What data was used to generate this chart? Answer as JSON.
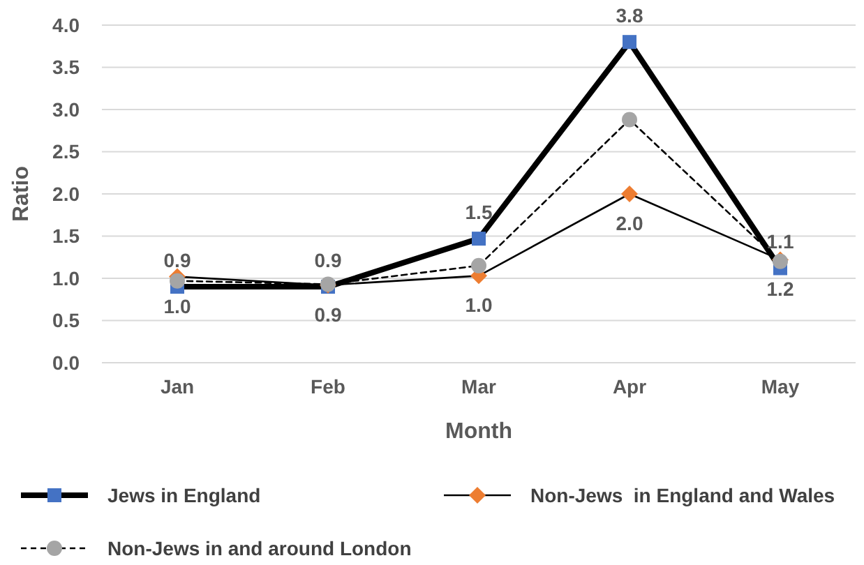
{
  "chart_data": {
    "type": "line",
    "xlabel": "Month",
    "ylabel": "Ratio",
    "categories": [
      "Jan",
      "Feb",
      "Mar",
      "Apr",
      "May"
    ],
    "ylim": [
      0,
      4
    ],
    "yticks": [
      "0.0",
      "0.5",
      "1.0",
      "1.5",
      "2.0",
      "2.5",
      "3.0",
      "3.5",
      "4.0"
    ],
    "grid": "y",
    "legend": "bottom",
    "series": [
      {
        "name": "Jews in England",
        "color": "#4472c4",
        "marker": "square",
        "line_style": "solid",
        "values": [
          0.9,
          0.9,
          1.47,
          3.8,
          1.12
        ],
        "value_labels": [
          "0.9",
          "0.9",
          "1.5",
          "3.8",
          "1.1"
        ]
      },
      {
        "name": "Non-Jews  in England and Wales",
        "color": "#ed7d31",
        "marker": "diamond",
        "line_style": "solid",
        "values": [
          1.02,
          0.92,
          1.03,
          2.0,
          1.22
        ],
        "value_labels": [
          "1.0",
          "0.9",
          "1.0",
          "2.0",
          "1.2"
        ]
      },
      {
        "name": "Non-Jews in and around London",
        "color": "#a5a5a5",
        "marker": "circle",
        "line_style": "dashed",
        "values": [
          0.97,
          0.93,
          1.15,
          2.88,
          1.2
        ]
      }
    ]
  }
}
